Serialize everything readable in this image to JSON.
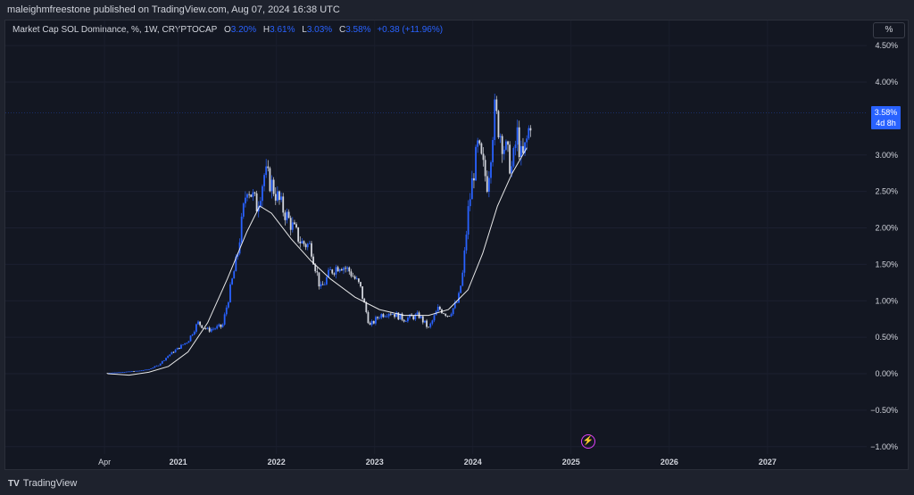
{
  "header": {
    "published": "maleighmfreestone published on TradingView.com, Aug 07, 2024 16:38 UTC"
  },
  "legend": {
    "symbol": "Market Cap SOL Dominance, %, 1W, CRYPTOCAP",
    "o_label": "O",
    "o_value": "3.20%",
    "h_label": "H",
    "h_value": "3.61%",
    "l_label": "L",
    "l_value": "3.03%",
    "c_label": "C",
    "c_value": "3.58%",
    "change": "+0.38 (+11.96%)"
  },
  "scale_button": "%",
  "last_price": {
    "value": "3.58%",
    "countdown": "4d 8h"
  },
  "footer": {
    "brand": "TradingView"
  },
  "colors": {
    "background": "#131722",
    "up": "#2962ff",
    "down": "#d1d4dc",
    "trend": "#ffffff",
    "accent": "#2962ff"
  },
  "chart_data": {
    "type": "candlestick",
    "interval": "1W",
    "y_unit": "%",
    "ylim": [
      -1.0,
      4.6
    ],
    "y_ticks": [
      "4.50%",
      "4.00%",
      "3.00%",
      "2.50%",
      "2.00%",
      "1.50%",
      "1.00%",
      "0.50%",
      "0.00%",
      "−0.50%",
      "−1.00%"
    ],
    "y_tick_values": [
      4.5,
      4.0,
      3.0,
      2.5,
      2.0,
      1.5,
      1.0,
      0.5,
      0.0,
      -0.5,
      -1.0
    ],
    "x_ticks": [
      "Apr",
      "2021",
      "2022",
      "2023",
      "2024",
      "2025",
      "2026",
      "2027"
    ],
    "x_tick_times": [
      2020.25,
      2021.0,
      2022.0,
      2023.0,
      2024.0,
      2025.0,
      2026.0,
      2027.0
    ],
    "xlim": [
      2019.24,
      2028.01
    ],
    "series": [
      {
        "name": "SOL Dominance",
        "points": [
          [
            2020.28,
            0.01
          ],
          [
            2020.4,
            0.02
          ],
          [
            2020.5,
            0.03
          ],
          [
            2020.6,
            0.04
          ],
          [
            2020.7,
            0.06
          ],
          [
            2020.8,
            0.12
          ],
          [
            2020.9,
            0.25
          ],
          [
            2021.0,
            0.35
          ],
          [
            2021.1,
            0.45
          ],
          [
            2021.2,
            0.7
          ],
          [
            2021.3,
            0.6
          ],
          [
            2021.45,
            0.65
          ],
          [
            2021.6,
            1.6
          ],
          [
            2021.7,
            2.6
          ],
          [
            2021.8,
            2.3
          ],
          [
            2021.88,
            2.75
          ],
          [
            2021.95,
            2.6
          ],
          [
            2022.05,
            2.3
          ],
          [
            2022.15,
            2.05
          ],
          [
            2022.25,
            1.8
          ],
          [
            2022.35,
            1.75
          ],
          [
            2022.45,
            1.15
          ],
          [
            2022.55,
            1.4
          ],
          [
            2022.65,
            1.5
          ],
          [
            2022.75,
            1.4
          ],
          [
            2022.85,
            1.2
          ],
          [
            2022.95,
            0.65
          ],
          [
            2023.05,
            0.8
          ],
          [
            2023.15,
            0.85
          ],
          [
            2023.3,
            0.75
          ],
          [
            2023.45,
            0.8
          ],
          [
            2023.55,
            0.62
          ],
          [
            2023.65,
            0.9
          ],
          [
            2023.75,
            0.8
          ],
          [
            2023.85,
            1.0
          ],
          [
            2023.9,
            1.4
          ],
          [
            2023.95,
            2.2
          ],
          [
            2024.0,
            2.7
          ],
          [
            2024.05,
            3.1
          ],
          [
            2024.15,
            2.6
          ],
          [
            2024.22,
            3.6
          ],
          [
            2024.3,
            3.2
          ],
          [
            2024.4,
            2.8
          ],
          [
            2024.45,
            3.3
          ],
          [
            2024.5,
            2.9
          ],
          [
            2024.55,
            3.2
          ],
          [
            2024.6,
            3.58
          ]
        ]
      },
      {
        "name": "trend curve",
        "points": [
          [
            2020.28,
            0.0
          ],
          [
            2020.5,
            -0.02
          ],
          [
            2020.7,
            0.02
          ],
          [
            2020.9,
            0.1
          ],
          [
            2021.1,
            0.3
          ],
          [
            2021.3,
            0.7
          ],
          [
            2021.5,
            1.3
          ],
          [
            2021.7,
            1.95
          ],
          [
            2021.83,
            2.3
          ],
          [
            2021.95,
            2.2
          ],
          [
            2022.15,
            1.85
          ],
          [
            2022.35,
            1.55
          ],
          [
            2022.55,
            1.3
          ],
          [
            2022.8,
            1.05
          ],
          [
            2023.05,
            0.88
          ],
          [
            2023.3,
            0.8
          ],
          [
            2023.55,
            0.8
          ],
          [
            2023.75,
            0.88
          ],
          [
            2023.95,
            1.15
          ],
          [
            2024.1,
            1.65
          ],
          [
            2024.25,
            2.3
          ],
          [
            2024.4,
            2.75
          ],
          [
            2024.55,
            3.1
          ]
        ]
      }
    ]
  }
}
